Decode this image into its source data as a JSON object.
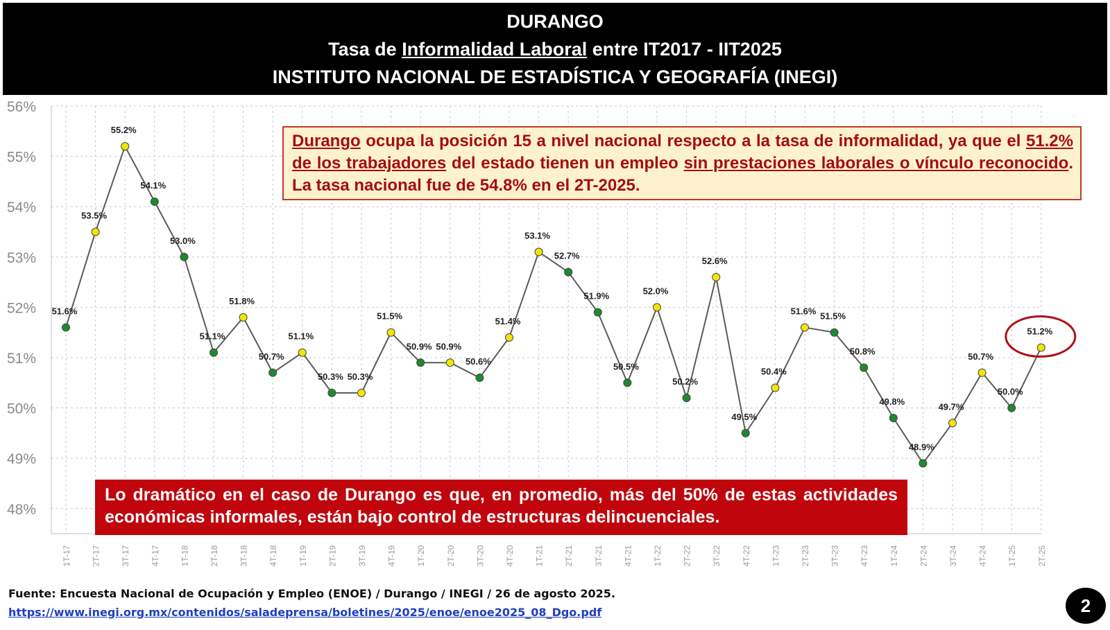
{
  "header": {
    "title": "DURANGO",
    "subtitle_pre": "Tasa de ",
    "subtitle_underlined": "Informalidad Laboral",
    "subtitle_post": " entre IT2017 - IIT2025",
    "institution": "INSTITUTO NACIONAL DE ESTADÍSTICA Y GEOGRAFÍA (INEGI)"
  },
  "callout_top": {
    "p1": "Durango",
    "p2": " ocupa la posición 15 a nivel nacional respecto a la tasa de informalidad, ya que el ",
    "p3": "51.2% de los trabajadores",
    "p4": " del estado tienen un empleo ",
    "p5": "sin prestaciones laborales o vínculo reconocido",
    "p6": ". La tasa nacional fue de 54.8% en el 2T-2025."
  },
  "callout_bottom": {
    "text": "Lo dramático en el caso de Durango es que, en promedio, más del 50% de estas actividades económicas informales, están bajo control de estructuras delincuenciales."
  },
  "footer": {
    "source": "Fuente: Encuesta Nacional de Ocupación y Empleo (ENOE) / Durango / INEGI / 26 de agosto 2025.",
    "url": "https://www.inegi.org.mx/contenidos/saladeprensa/boletines/2025/enoe/enoe2025_08_Dgo.pdf",
    "page_number": "2"
  },
  "colors": {
    "header_bg": "#000000",
    "point_increase": "#f2e600",
    "point_decrease": "#1e8a2e",
    "line": "#5a5a5a",
    "highlight_ring": "#b01018",
    "top_box_bg": "#fdf2cd",
    "top_box_text": "#a50d10",
    "bottom_box_bg": "#c0050c"
  },
  "chart_data": {
    "type": "line",
    "title": "",
    "xlabel": "",
    "ylabel": "",
    "ylim": [
      47.5,
      56
    ],
    "grid": true,
    "yticks": [
      "48%",
      "49%",
      "50%",
      "51%",
      "52%",
      "53%",
      "54%",
      "55%",
      "56%"
    ],
    "ytick_values": [
      48,
      49,
      50,
      51,
      52,
      53,
      54,
      55,
      56
    ],
    "categories": [
      "1T-17",
      "2T-17",
      "3T-17",
      "4T-17",
      "1T-18",
      "2T-18",
      "3T-18",
      "4T-18",
      "1T-19",
      "2T-19",
      "3T-19",
      "4T-19",
      "1T-20",
      "2T-20",
      "3T-20",
      "4T-20",
      "1T-21",
      "2T-21",
      "3T-21",
      "4T-21",
      "1T-22",
      "2T-22",
      "3T-22",
      "4T-22",
      "1T-23",
      "2T-23",
      "3T-23",
      "4T-23",
      "1T-24",
      "2T-24",
      "3T-24",
      "4T-24",
      "1T-25",
      "2T-25"
    ],
    "values": [
      51.6,
      53.5,
      55.2,
      54.1,
      53.0,
      51.1,
      51.8,
      50.7,
      51.1,
      50.3,
      50.3,
      51.5,
      50.9,
      50.9,
      50.6,
      51.4,
      53.1,
      52.7,
      51.9,
      50.5,
      52.0,
      50.2,
      52.6,
      49.5,
      50.4,
      51.6,
      51.5,
      50.8,
      49.8,
      48.9,
      49.7,
      50.7,
      50.0,
      51.2
    ],
    "labels": [
      "51.6%",
      "53.5%",
      "55.2%",
      "54.1%",
      "53.0%",
      "51.1%",
      "51.8%",
      "50.7%",
      "51.1%",
      "50.3%",
      "50.3%",
      "51.5%",
      "50.9%",
      "50.9%",
      "50.6%",
      "51.4%",
      "53.1%",
      "52.7%",
      "51.9%",
      "50.5%",
      "52.0%",
      "50.2%",
      "52.6%",
      "49.5%",
      "50.4%",
      "51.6%",
      "51.5%",
      "50.8%",
      "49.8%",
      "48.9%",
      "49.7%",
      "50.7%",
      "50.0%",
      "51.2%"
    ],
    "highlight_index": 33
  }
}
